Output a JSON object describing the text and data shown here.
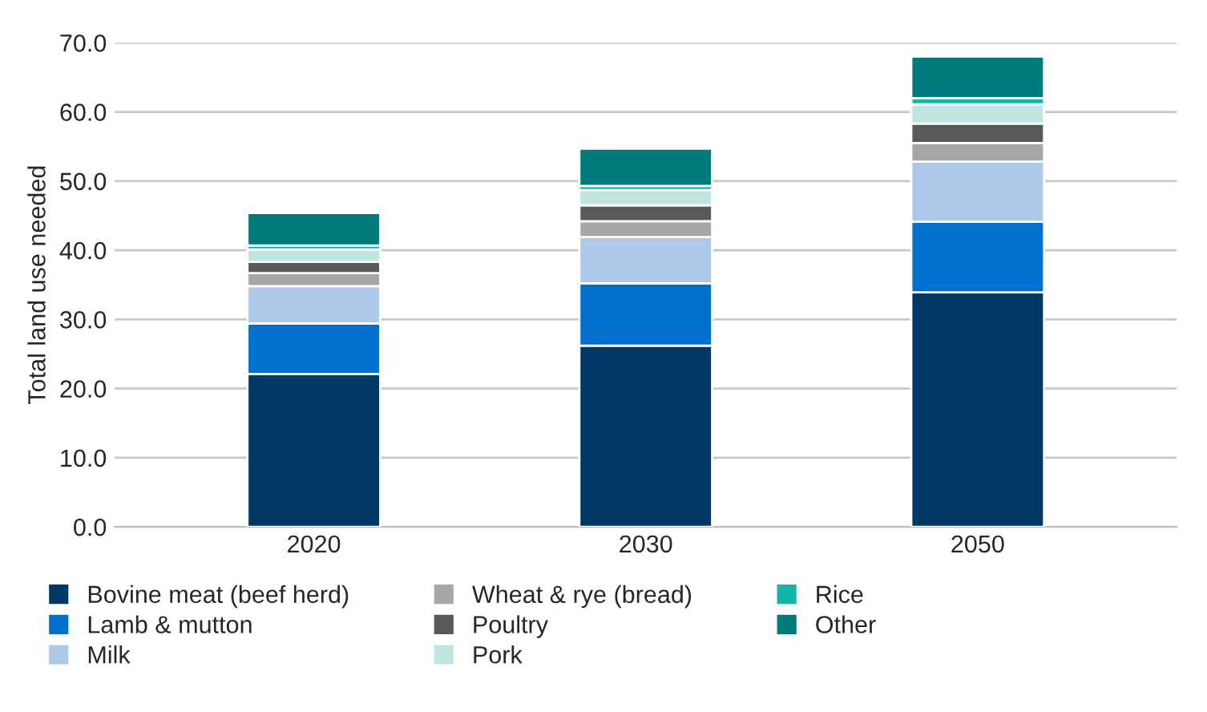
{
  "chart_data": {
    "type": "bar",
    "stacked": true,
    "ylabel": "Total land use needed",
    "categories": [
      "2020",
      "2030",
      "2050"
    ],
    "series": [
      {
        "name": "Bovine meat (beef herd)",
        "color": "#003865",
        "values": [
          22.1,
          26.2,
          33.9
        ]
      },
      {
        "name": "Lamb & mutton",
        "color": "#0070cc",
        "values": [
          7.3,
          9.0,
          10.2
        ]
      },
      {
        "name": "Milk",
        "color": "#adc8e8",
        "values": [
          5.4,
          6.7,
          8.7
        ]
      },
      {
        "name": "Wheat & rye (bread)",
        "color": "#a6a6a6",
        "values": [
          1.9,
          2.3,
          2.7
        ]
      },
      {
        "name": "Poultry",
        "color": "#595959",
        "values": [
          1.6,
          2.3,
          2.8
        ]
      },
      {
        "name": "Pork",
        "color": "#bfe5e0",
        "values": [
          1.8,
          2.2,
          2.8
        ]
      },
      {
        "name": "Rice",
        "color": "#12b5a8",
        "values": [
          0.6,
          0.6,
          0.9
        ]
      },
      {
        "name": "Other",
        "color": "#007a7a",
        "values": [
          4.7,
          5.4,
          6.0
        ]
      }
    ],
    "ylim": [
      0,
      70
    ],
    "yticks": [
      {
        "value": 0,
        "label": "0.0"
      },
      {
        "value": 10,
        "label": "10.0"
      },
      {
        "value": 20,
        "label": "20.0"
      },
      {
        "value": 30,
        "label": "30.0"
      },
      {
        "value": 40,
        "label": "40.0"
      },
      {
        "value": 50,
        "label": "50.0"
      },
      {
        "value": 60,
        "label": "60.0"
      },
      {
        "value": 70,
        "label": "70.0"
      }
    ],
    "grid": "y",
    "legend": "bottom"
  }
}
